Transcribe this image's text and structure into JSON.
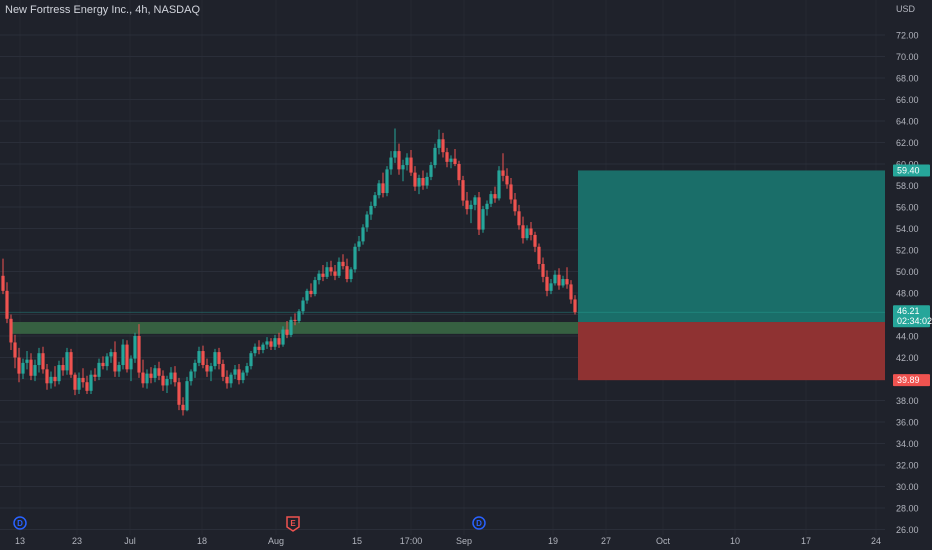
{
  "header": {
    "title": "New Fortress Energy Inc., 4h, NASDAQ"
  },
  "axis": {
    "currency": "USD"
  },
  "colors": {
    "background": "#1f222b",
    "up": "#26a69a",
    "down": "#ef5350",
    "grid": "#2a2e39",
    "text": "#b2b5be",
    "profit_zone": "#1a6e69",
    "loss_zone": "#8f3232",
    "support_zone": "#3b6b45",
    "earnings": "#ef5350",
    "dividend": "#2962ff"
  },
  "chart_data": {
    "type": "candlestick",
    "ylim": [
      26,
      74
    ],
    "yticks": [
      26,
      28,
      30,
      32,
      34,
      36,
      38,
      40,
      42,
      44,
      46,
      48,
      50,
      52,
      54,
      56,
      58,
      60,
      62,
      64,
      66,
      68,
      70,
      72
    ],
    "x_tick_labels": [
      "13",
      "23",
      "Jul",
      "18",
      "Aug",
      "15",
      "17:00",
      "Sep",
      "19",
      "27",
      "Oct",
      "10",
      "17",
      "24"
    ],
    "current_price": {
      "value": 46.21,
      "label": "46.21",
      "countdown": "02:34:02"
    },
    "target_price": {
      "value": 59.4,
      "label": "59.40"
    },
    "stop_price": {
      "value": 39.89,
      "label": "39.89"
    },
    "entry_zone": [
      44.2,
      45.3
    ],
    "events": [
      {
        "type": "dividend",
        "symbol": "D",
        "at": "13"
      },
      {
        "type": "earnings",
        "symbol": "E",
        "at": "Aug"
      },
      {
        "type": "dividend",
        "symbol": "D",
        "at": "Sep"
      }
    ],
    "candles": [
      [
        49.6,
        51.2,
        47.9,
        48.2
      ],
      [
        48.2,
        49.0,
        45.2,
        45.6
      ],
      [
        45.6,
        46.0,
        42.7,
        43.4
      ],
      [
        43.4,
        44.1,
        41.0,
        42.0
      ],
      [
        42.0,
        42.9,
        39.7,
        40.5
      ],
      [
        40.5,
        41.9,
        40.0,
        41.5
      ],
      [
        41.5,
        42.6,
        40.9,
        41.8
      ],
      [
        41.8,
        42.4,
        39.9,
        40.3
      ],
      [
        40.3,
        41.8,
        39.8,
        41.3
      ],
      [
        41.3,
        42.9,
        40.6,
        42.4
      ],
      [
        42.4,
        43.0,
        40.5,
        40.9
      ],
      [
        40.9,
        41.4,
        39.0,
        39.6
      ],
      [
        39.6,
        40.7,
        39.1,
        40.2
      ],
      [
        40.2,
        41.2,
        39.3,
        39.8
      ],
      [
        39.8,
        41.7,
        39.5,
        41.3
      ],
      [
        41.3,
        42.0,
        40.3,
        40.8
      ],
      [
        40.8,
        42.9,
        40.4,
        42.5
      ],
      [
        42.5,
        42.8,
        40.1,
        40.4
      ],
      [
        40.4,
        40.6,
        38.5,
        39.0
      ],
      [
        39.0,
        40.6,
        38.6,
        40.1
      ],
      [
        40.1,
        41.0,
        39.2,
        39.7
      ],
      [
        39.7,
        40.3,
        38.6,
        38.9
      ],
      [
        38.9,
        40.8,
        38.6,
        40.4
      ],
      [
        40.4,
        41.0,
        39.8,
        40.2
      ],
      [
        40.2,
        41.9,
        39.9,
        41.5
      ],
      [
        41.5,
        42.1,
        40.9,
        41.2
      ],
      [
        41.2,
        42.4,
        40.8,
        42.1
      ],
      [
        42.1,
        42.8,
        41.5,
        42.5
      ],
      [
        42.5,
        43.5,
        40.2,
        40.7
      ],
      [
        40.7,
        41.6,
        40.2,
        41.3
      ],
      [
        41.3,
        43.7,
        40.9,
        43.2
      ],
      [
        43.2,
        43.6,
        40.6,
        40.9
      ],
      [
        40.9,
        42.2,
        39.8,
        41.9
      ],
      [
        41.9,
        44.3,
        41.5,
        44.0
      ],
      [
        44.0,
        45.1,
        40.1,
        40.6
      ],
      [
        40.6,
        41.8,
        39.2,
        39.6
      ],
      [
        39.6,
        40.9,
        39.1,
        40.5
      ],
      [
        40.5,
        41.1,
        39.6,
        40.1
      ],
      [
        40.1,
        41.3,
        39.7,
        41.0
      ],
      [
        41.0,
        41.6,
        39.9,
        40.3
      ],
      [
        40.3,
        40.8,
        38.9,
        39.4
      ],
      [
        39.4,
        40.3,
        38.7,
        40.0
      ],
      [
        40.0,
        41.1,
        39.5,
        40.6
      ],
      [
        40.6,
        41.2,
        39.3,
        39.7
      ],
      [
        39.7,
        40.1,
        37.1,
        37.6
      ],
      [
        37.6,
        38.3,
        36.6,
        37.1
      ],
      [
        37.1,
        40.2,
        37.0,
        39.8
      ],
      [
        39.8,
        40.9,
        39.4,
        40.7
      ],
      [
        40.7,
        41.8,
        40.1,
        41.5
      ],
      [
        41.5,
        43.0,
        41.2,
        42.6
      ],
      [
        42.6,
        43.1,
        41.0,
        41.3
      ],
      [
        41.3,
        41.9,
        40.2,
        40.7
      ],
      [
        40.7,
        41.5,
        39.8,
        41.2
      ],
      [
        41.2,
        42.8,
        40.9,
        42.5
      ],
      [
        42.5,
        42.9,
        40.9,
        41.4
      ],
      [
        41.4,
        41.8,
        39.8,
        40.2
      ],
      [
        40.2,
        40.8,
        39.1,
        39.6
      ],
      [
        39.6,
        40.6,
        39.2,
        40.4
      ],
      [
        40.4,
        41.3,
        40.0,
        40.9
      ],
      [
        40.9,
        41.4,
        39.5,
        39.9
      ],
      [
        39.9,
        40.8,
        39.6,
        40.6
      ],
      [
        40.6,
        41.5,
        40.3,
        41.2
      ],
      [
        41.2,
        42.6,
        40.9,
        42.4
      ],
      [
        42.4,
        43.3,
        42.1,
        43.0
      ],
      [
        43.0,
        43.6,
        42.3,
        42.7
      ],
      [
        42.7,
        43.4,
        42.4,
        43.2
      ],
      [
        43.2,
        43.9,
        42.8,
        43.5
      ],
      [
        43.5,
        43.8,
        42.7,
        43.0
      ],
      [
        43.0,
        44.1,
        42.7,
        43.8
      ],
      [
        43.8,
        44.3,
        42.9,
        43.2
      ],
      [
        43.2,
        44.9,
        43.0,
        44.6
      ],
      [
        44.6,
        45.4,
        43.8,
        44.1
      ],
      [
        44.1,
        45.8,
        43.9,
        45.5
      ],
      [
        45.5,
        46.1,
        45.0,
        45.4
      ],
      [
        45.4,
        46.5,
        45.2,
        46.3
      ],
      [
        46.3,
        47.6,
        46.0,
        47.3
      ],
      [
        47.3,
        48.4,
        47.0,
        48.2
      ],
      [
        48.2,
        48.9,
        47.6,
        47.9
      ],
      [
        47.9,
        49.5,
        47.7,
        49.2
      ],
      [
        49.2,
        50.1,
        48.8,
        49.8
      ],
      [
        49.8,
        50.6,
        49.1,
        49.5
      ],
      [
        49.5,
        50.9,
        49.3,
        50.4
      ],
      [
        50.4,
        51.0,
        49.6,
        50.0
      ],
      [
        50.0,
        50.6,
        49.2,
        49.6
      ],
      [
        49.6,
        51.3,
        49.4,
        50.9
      ],
      [
        50.9,
        51.6,
        50.2,
        50.5
      ],
      [
        50.5,
        51.2,
        49.0,
        49.3
      ],
      [
        49.3,
        50.4,
        49.0,
        50.2
      ],
      [
        50.2,
        52.6,
        49.9,
        52.3
      ],
      [
        52.3,
        53.3,
        51.9,
        52.8
      ],
      [
        52.8,
        54.4,
        52.5,
        54.1
      ],
      [
        54.1,
        55.6,
        53.7,
        55.3
      ],
      [
        55.3,
        56.5,
        54.8,
        56.1
      ],
      [
        56.1,
        57.4,
        55.9,
        57.1
      ],
      [
        57.1,
        58.5,
        56.8,
        58.2
      ],
      [
        58.2,
        59.2,
        56.9,
        57.3
      ],
      [
        57.3,
        59.8,
        57.0,
        59.5
      ],
      [
        59.5,
        61.2,
        59.0,
        60.6
      ],
      [
        60.6,
        63.3,
        60.1,
        61.2
      ],
      [
        61.2,
        61.9,
        59.0,
        59.5
      ],
      [
        59.5,
        60.4,
        58.4,
        59.9
      ],
      [
        59.9,
        61.0,
        59.4,
        60.6
      ],
      [
        60.6,
        61.3,
        58.9,
        59.2
      ],
      [
        59.2,
        59.8,
        57.5,
        57.9
      ],
      [
        57.9,
        59.0,
        57.2,
        58.7
      ],
      [
        58.7,
        59.4,
        57.6,
        58.0
      ],
      [
        58.0,
        59.2,
        57.7,
        58.8
      ],
      [
        58.8,
        60.2,
        58.5,
        59.9
      ],
      [
        59.9,
        61.9,
        59.6,
        61.5
      ],
      [
        61.5,
        63.2,
        60.9,
        62.3
      ],
      [
        62.3,
        62.9,
        60.6,
        61.1
      ],
      [
        61.1,
        61.5,
        59.7,
        60.2
      ],
      [
        60.2,
        60.8,
        59.6,
        60.5
      ],
      [
        60.5,
        61.4,
        59.8,
        60.0
      ],
      [
        60.0,
        60.3,
        58.0,
        58.5
      ],
      [
        58.5,
        58.9,
        56.1,
        56.6
      ],
      [
        56.6,
        57.4,
        55.3,
        55.8
      ],
      [
        55.8,
        56.6,
        54.5,
        56.2
      ],
      [
        56.2,
        57.1,
        55.7,
        56.9
      ],
      [
        56.9,
        57.4,
        53.4,
        53.9
      ],
      [
        53.9,
        56.1,
        53.6,
        55.8
      ],
      [
        55.8,
        56.6,
        55.2,
        56.3
      ],
      [
        56.3,
        57.5,
        56.0,
        57.2
      ],
      [
        57.2,
        57.9,
        56.4,
        56.8
      ],
      [
        56.8,
        59.8,
        56.6,
        59.4
      ],
      [
        59.4,
        61.0,
        58.4,
        58.9
      ],
      [
        58.9,
        59.6,
        57.7,
        58.1
      ],
      [
        58.1,
        58.7,
        56.3,
        56.7
      ],
      [
        56.7,
        57.3,
        55.2,
        55.6
      ],
      [
        55.6,
        56.2,
        53.9,
        54.3
      ],
      [
        54.3,
        55.1,
        52.6,
        53.1
      ],
      [
        53.1,
        54.3,
        52.9,
        54.0
      ],
      [
        54.0,
        54.6,
        52.9,
        53.4
      ],
      [
        53.4,
        53.7,
        51.8,
        52.3
      ],
      [
        52.3,
        52.6,
        50.2,
        50.7
      ],
      [
        50.7,
        51.3,
        49.0,
        49.5
      ],
      [
        49.5,
        50.1,
        47.7,
        48.2
      ],
      [
        48.2,
        49.3,
        47.9,
        48.9
      ],
      [
        48.9,
        50.1,
        48.7,
        49.7
      ],
      [
        49.7,
        50.3,
        48.3,
        48.7
      ],
      [
        48.7,
        49.6,
        48.5,
        49.3
      ],
      [
        49.3,
        50.4,
        48.4,
        48.8
      ],
      [
        48.8,
        49.2,
        47.0,
        47.4
      ],
      [
        47.4,
        47.8,
        46.0,
        46.21
      ]
    ]
  }
}
